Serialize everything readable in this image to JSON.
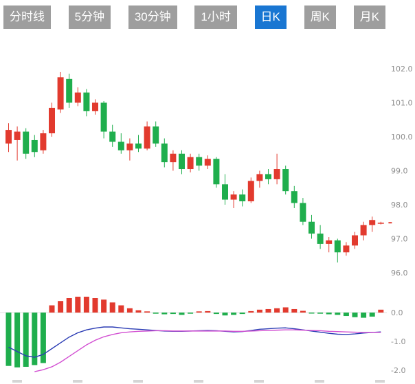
{
  "tabs": {
    "items": [
      {
        "label": "分时线",
        "active": false
      },
      {
        "label": "5分钟",
        "active": false
      },
      {
        "label": "30分钟",
        "active": false
      },
      {
        "label": "1小时",
        "active": false
      },
      {
        "label": "日K",
        "active": true
      },
      {
        "label": "周K",
        "active": false
      },
      {
        "label": "月K",
        "active": false
      }
    ],
    "active_color": "#1976d2",
    "inactive_color": "#9e9e9e"
  },
  "chart_data": {
    "type": "candlestick+macd",
    "title": "",
    "legend_position": "none",
    "grid": false,
    "colors": {
      "up": "#e23a2e",
      "down": "#1fae4d",
      "dif_line": "#2b3cb4",
      "dea_line": "#d24fd2",
      "axis_text": "#8c8c8c",
      "zero_line": "#e0e0e0"
    },
    "price_axis": {
      "ticks": [
        "102.0",
        "101.0",
        "100.0",
        "99.0",
        "98.0",
        "97.0",
        "96.0"
      ],
      "range": [
        95.5,
        102.8
      ]
    },
    "candles": [
      {
        "o": 99.8,
        "h": 100.4,
        "l": 99.55,
        "c": 100.2
      },
      {
        "o": 99.9,
        "h": 100.3,
        "l": 99.3,
        "c": 100.15
      },
      {
        "o": 100.15,
        "h": 100.25,
        "l": 99.35,
        "c": 99.5
      },
      {
        "o": 99.9,
        "h": 100.05,
        "l": 99.4,
        "c": 99.55
      },
      {
        "o": 99.6,
        "h": 100.2,
        "l": 99.5,
        "c": 100.1
      },
      {
        "o": 100.1,
        "h": 101.0,
        "l": 100.0,
        "c": 100.85
      },
      {
        "o": 100.8,
        "h": 101.9,
        "l": 100.7,
        "c": 101.75
      },
      {
        "o": 101.7,
        "h": 101.85,
        "l": 100.85,
        "c": 101.0
      },
      {
        "o": 101.0,
        "h": 101.45,
        "l": 100.9,
        "c": 101.3
      },
      {
        "o": 101.3,
        "h": 101.4,
        "l": 100.6,
        "c": 100.75
      },
      {
        "o": 100.75,
        "h": 101.1,
        "l": 100.65,
        "c": 101.0
      },
      {
        "o": 101.0,
        "h": 101.05,
        "l": 99.95,
        "c": 100.15
      },
      {
        "o": 100.15,
        "h": 100.35,
        "l": 99.7,
        "c": 99.85
      },
      {
        "o": 99.85,
        "h": 100.1,
        "l": 99.5,
        "c": 99.6
      },
      {
        "o": 99.6,
        "h": 99.95,
        "l": 99.3,
        "c": 99.8
      },
      {
        "o": 99.8,
        "h": 100.05,
        "l": 99.55,
        "c": 99.65
      },
      {
        "o": 99.65,
        "h": 100.45,
        "l": 99.6,
        "c": 100.3
      },
      {
        "o": 100.3,
        "h": 100.45,
        "l": 99.7,
        "c": 99.8
      },
      {
        "o": 99.8,
        "h": 99.95,
        "l": 99.1,
        "c": 99.25
      },
      {
        "o": 99.25,
        "h": 99.6,
        "l": 99.0,
        "c": 99.5
      },
      {
        "o": 99.5,
        "h": 99.6,
        "l": 98.9,
        "c": 99.05
      },
      {
        "o": 99.05,
        "h": 99.5,
        "l": 98.95,
        "c": 99.4
      },
      {
        "o": 99.4,
        "h": 99.5,
        "l": 99.0,
        "c": 99.15
      },
      {
        "o": 99.15,
        "h": 99.45,
        "l": 99.05,
        "c": 99.35
      },
      {
        "o": 99.35,
        "h": 99.4,
        "l": 98.5,
        "c": 98.6
      },
      {
        "o": 98.6,
        "h": 98.9,
        "l": 98.0,
        "c": 98.15
      },
      {
        "o": 98.15,
        "h": 98.4,
        "l": 97.9,
        "c": 98.3
      },
      {
        "o": 98.3,
        "h": 98.45,
        "l": 97.95,
        "c": 98.1
      },
      {
        "o": 98.1,
        "h": 98.8,
        "l": 98.05,
        "c": 98.7
      },
      {
        "o": 98.7,
        "h": 99.0,
        "l": 98.5,
        "c": 98.9
      },
      {
        "o": 98.9,
        "h": 99.05,
        "l": 98.6,
        "c": 98.75
      },
      {
        "o": 98.75,
        "h": 99.5,
        "l": 98.6,
        "c": 99.05
      },
      {
        "o": 99.05,
        "h": 99.15,
        "l": 98.3,
        "c": 98.4
      },
      {
        "o": 98.4,
        "h": 98.55,
        "l": 97.9,
        "c": 98.05
      },
      {
        "o": 98.05,
        "h": 98.2,
        "l": 97.4,
        "c": 97.5
      },
      {
        "o": 97.5,
        "h": 97.7,
        "l": 97.0,
        "c": 97.15
      },
      {
        "o": 97.15,
        "h": 97.4,
        "l": 96.7,
        "c": 96.85
      },
      {
        "o": 96.85,
        "h": 97.05,
        "l": 96.6,
        "c": 96.95
      },
      {
        "o": 96.95,
        "h": 97.0,
        "l": 96.3,
        "c": 96.6
      },
      {
        "o": 96.6,
        "h": 96.9,
        "l": 96.5,
        "c": 96.8
      },
      {
        "o": 96.8,
        "h": 97.2,
        "l": 96.7,
        "c": 97.1
      },
      {
        "o": 97.1,
        "h": 97.5,
        "l": 96.95,
        "c": 97.4
      },
      {
        "o": 97.4,
        "h": 97.65,
        "l": 97.2,
        "c": 97.55
      },
      {
        "o": 97.44,
        "h": 97.5,
        "l": 97.42,
        "c": 97.47
      }
    ],
    "macd": {
      "axis_ticks": [
        "0.0",
        "-1.0",
        "-2.0"
      ],
      "range": [
        -2.1,
        0.7
      ],
      "histogram": [
        -1.85,
        -1.9,
        -1.88,
        -1.82,
        -1.75,
        0.25,
        0.4,
        0.5,
        0.55,
        0.55,
        0.5,
        0.45,
        0.35,
        0.25,
        0.15,
        0.08,
        0.04,
        -0.04,
        -0.06,
        -0.05,
        -0.08,
        -0.04,
        0.04,
        0.05,
        -0.05,
        -0.1,
        -0.08,
        -0.05,
        0.05,
        0.1,
        0.12,
        0.15,
        0.18,
        0.12,
        0.06,
        -0.03,
        -0.04,
        -0.06,
        -0.08,
        -0.12,
        -0.16,
        -0.18,
        -0.14,
        0.1
      ],
      "dif": [
        -1.2,
        -1.35,
        -1.5,
        -1.55,
        -1.45,
        -1.25,
        -1.05,
        -0.85,
        -0.7,
        -0.6,
        -0.54,
        -0.5,
        -0.5,
        -0.53,
        -0.56,
        -0.58,
        -0.6,
        -0.62,
        -0.64,
        -0.65,
        -0.65,
        -0.64,
        -0.63,
        -0.62,
        -0.63,
        -0.65,
        -0.67,
        -0.66,
        -0.62,
        -0.58,
        -0.56,
        -0.54,
        -0.53,
        -0.56,
        -0.6,
        -0.64,
        -0.68,
        -0.72,
        -0.75,
        -0.76,
        -0.74,
        -0.71,
        -0.69,
        -0.67
      ],
      "dea": [
        null,
        null,
        null,
        -2.05,
        -1.98,
        -1.88,
        -1.72,
        -1.52,
        -1.32,
        -1.12,
        -0.96,
        -0.84,
        -0.76,
        -0.7,
        -0.67,
        -0.65,
        -0.64,
        -0.63,
        -0.63,
        -0.64,
        -0.64,
        -0.64,
        -0.64,
        -0.64,
        -0.64,
        -0.64,
        -0.65,
        -0.65,
        -0.64,
        -0.63,
        -0.62,
        -0.61,
        -0.6,
        -0.6,
        -0.61,
        -0.62,
        -0.63,
        -0.65,
        -0.66,
        -0.67,
        -0.68,
        -0.69,
        -0.69,
        -0.69
      ]
    }
  }
}
